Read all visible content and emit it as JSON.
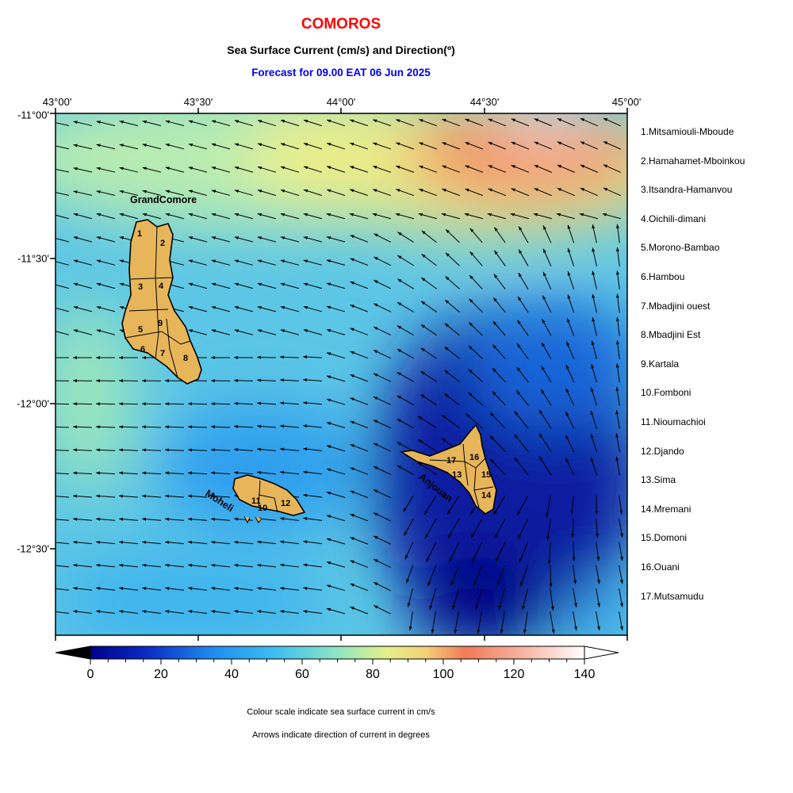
{
  "header": {
    "title": "COMOROS",
    "title_color": "#ff0000",
    "subtitle": "Sea Surface Current (cm/s) and Direction(º)",
    "forecast": "Forecast for  09.00 EAT 06 Jun 2025",
    "forecast_color": "#0000ff"
  },
  "axes": {
    "longitude_labels": [
      "43°00'",
      "43°30'",
      "44°00'",
      "44°30'",
      "45°00'"
    ],
    "latitude_labels": [
      "-11°00'",
      "-11°30'",
      "-12°00'",
      "-12°30'"
    ]
  },
  "map": {
    "island_labels": [
      "GrandComore",
      "Moheli",
      "Anjouan"
    ],
    "region_numbers": [
      "1",
      "2",
      "3",
      "4",
      "5",
      "6",
      "7",
      "8",
      "9",
      "10",
      "11",
      "12",
      "13",
      "14",
      "15",
      "16",
      "17"
    ],
    "island_fill": "#e8b65a"
  },
  "legend": {
    "regions": [
      "1.Mitsamiouli-Mboude",
      "2.Hamahamet-Mboinkou",
      "3.Itsandra-Hamanvou",
      "4.Oichili-dimani",
      "5.Morono-Bambao",
      "6.Hambou",
      "7.Mbadjini ouest",
      "8.Mbadjini Est",
      "9.Kartala",
      "10.Fomboni",
      "11.Nioumachioi",
      "12.Djando",
      "13.Sima",
      "14.Mremani",
      "15.Domoni",
      "16.Ouani",
      "17.Mutsamudu"
    ]
  },
  "colorbar": {
    "ticks": [
      "0",
      "20",
      "40",
      "60",
      "80",
      "100",
      "120",
      "140"
    ],
    "range": [
      0,
      140
    ],
    "colors": [
      "#00008b",
      "#0033cc",
      "#1e90ff",
      "#3fb8f0",
      "#7fe0c8",
      "#d8ef8a",
      "#f0cf78",
      "#f08058",
      "#f8b8a8",
      "#ffffff"
    ]
  },
  "notes": {
    "line1": "Colour scale indicate sea surface current in cm/s",
    "line2": "Arrows indicate direction of current in degrees"
  }
}
